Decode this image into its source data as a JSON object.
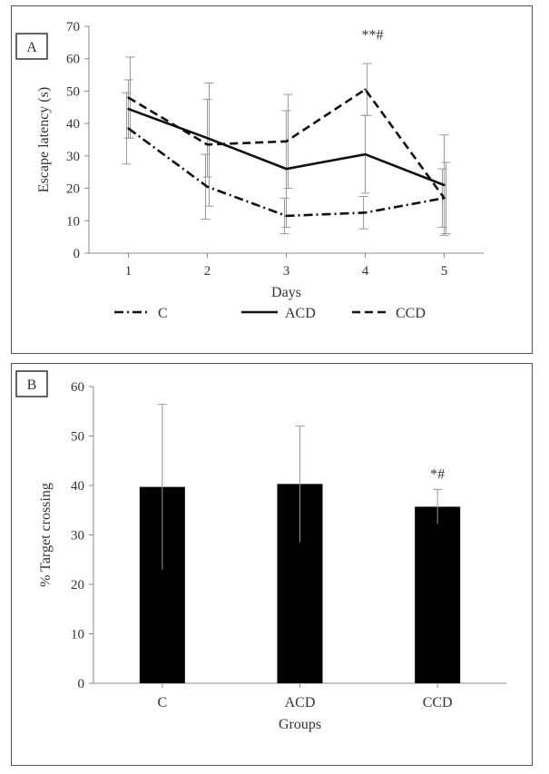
{
  "chart_data": [
    {
      "type": "line",
      "panel_label": "A",
      "xlabel": "Days",
      "ylabel": "Escape latency (s)",
      "x": [
        1,
        2,
        3,
        4,
        5
      ],
      "ylim": [
        0,
        70
      ],
      "yticks": [
        0,
        10,
        20,
        30,
        40,
        50,
        60,
        70
      ],
      "legend_position": "bottom",
      "annotation": {
        "text": "**#",
        "x": 4
      },
      "series": [
        {
          "name": "C",
          "style": "dashdot",
          "values": [
            38.5,
            20.5,
            11.5,
            12.5,
            17.0
          ],
          "errors": [
            11,
            10,
            5.5,
            5,
            9
          ]
        },
        {
          "name": "ACD",
          "style": "solid",
          "values": [
            44.5,
            35.5,
            26.0,
            30.5,
            21.0
          ],
          "errors": [
            9,
            12,
            18,
            12,
            15.5
          ]
        },
        {
          "name": "CCD",
          "style": "dashed",
          "values": [
            48.0,
            33.5,
            34.5,
            50.5,
            17.0
          ],
          "errors": [
            12.5,
            19,
            14.5,
            8,
            11
          ]
        }
      ]
    },
    {
      "type": "bar",
      "panel_label": "B",
      "xlabel": "Groups",
      "ylabel": "% Target crossing",
      "categories": [
        "C",
        "ACD",
        "CCD"
      ],
      "values": [
        39.7,
        40.3,
        35.7
      ],
      "errors": [
        16.7,
        11.7,
        3.5
      ],
      "ylim": [
        0,
        60
      ],
      "yticks": [
        0,
        10,
        20,
        30,
        40,
        50,
        60
      ],
      "annotation": {
        "text": "*#",
        "category": "CCD"
      },
      "bar_color": "#000000"
    }
  ]
}
